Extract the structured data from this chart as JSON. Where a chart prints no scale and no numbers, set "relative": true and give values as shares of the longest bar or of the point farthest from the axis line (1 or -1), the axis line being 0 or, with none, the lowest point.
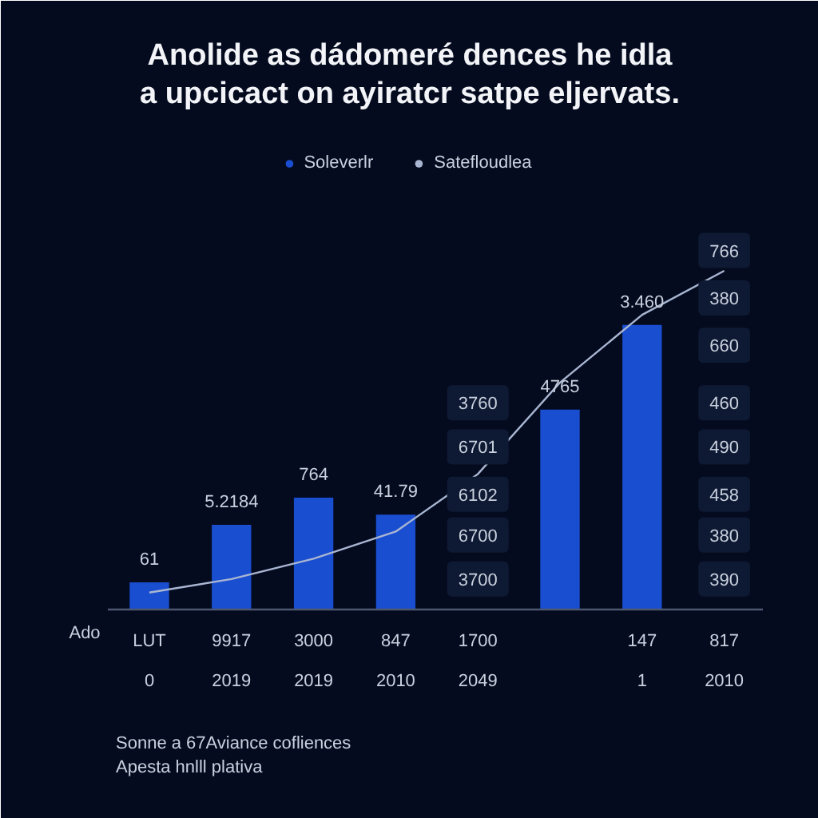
{
  "chart_data": {
    "type": "bar",
    "title": "Anolide as dádomeré dences he idla\na upcicact on ayiratcr satpe eljervats.",
    "xlabel": "Ado",
    "categories": [
      "LUT\n0",
      "9917\n2019",
      "3000\n2019",
      "847\n2010",
      "1700\n2049",
      null,
      "147\n1",
      "817\n2010"
    ],
    "relative": true,
    "legend": "top",
    "series": [
      {
        "name": "Soleverlr",
        "color": "#1a4ed1",
        "values": [
          0.08,
          0.25,
          0.33,
          0.28,
          null,
          0.59,
          0.84,
          null
        ]
      },
      {
        "name": "Satefloudlea",
        "type": "line",
        "color": "#a9b6d2",
        "values": [
          0.05,
          0.09,
          0.15,
          0.23,
          0.4,
          0.67,
          0.87,
          1.0
        ]
      }
    ],
    "annotations": [
      {
        "text": "61",
        "x": "LUT\n0",
        "y": 0.08
      },
      {
        "text": "5.2184",
        "x": "9917\n2019",
        "y": 0.25
      },
      {
        "text": "764",
        "x": "3000\n2019",
        "y": 0.33
      },
      {
        "text": "41.79",
        "x": "847\n2010",
        "y": 0.28
      },
      {
        "text": "4765",
        "y": 0.59
      },
      {
        "text": "3.460",
        "x": "147\n1",
        "y": 0.84
      },
      {
        "text": "3760",
        "x": "1700\n2049",
        "y": 0.61
      },
      {
        "text": "6701",
        "x": "1700\n2049",
        "y": 0.48
      },
      {
        "text": "6102",
        "x": "1700\n2049",
        "y": 0.34
      },
      {
        "text": "6700",
        "x": "1700\n2049",
        "y": 0.22
      },
      {
        "text": "3700",
        "x": "1700\n2049",
        "y": 0.09
      },
      {
        "text": "766",
        "x": "817\n2010",
        "y": 1.06
      },
      {
        "text": "380",
        "x": "817\n2010",
        "y": 0.92
      },
      {
        "text": "660",
        "x": "817\n2010",
        "y": 0.78
      },
      {
        "text": "460",
        "x": "817\n2010",
        "y": 0.61
      },
      {
        "text": "490",
        "x": "817\n2010",
        "y": 0.48
      },
      {
        "text": "458",
        "x": "817\n2010",
        "y": 0.34
      },
      {
        "text": "380",
        "x": "817\n2010",
        "y": 0.22
      },
      {
        "text": "390",
        "x": "817\n2010",
        "y": 0.09
      },
      "Sonne a 67Aviance cofliences",
      "Apesta hnlll plativa"
    ]
  }
}
